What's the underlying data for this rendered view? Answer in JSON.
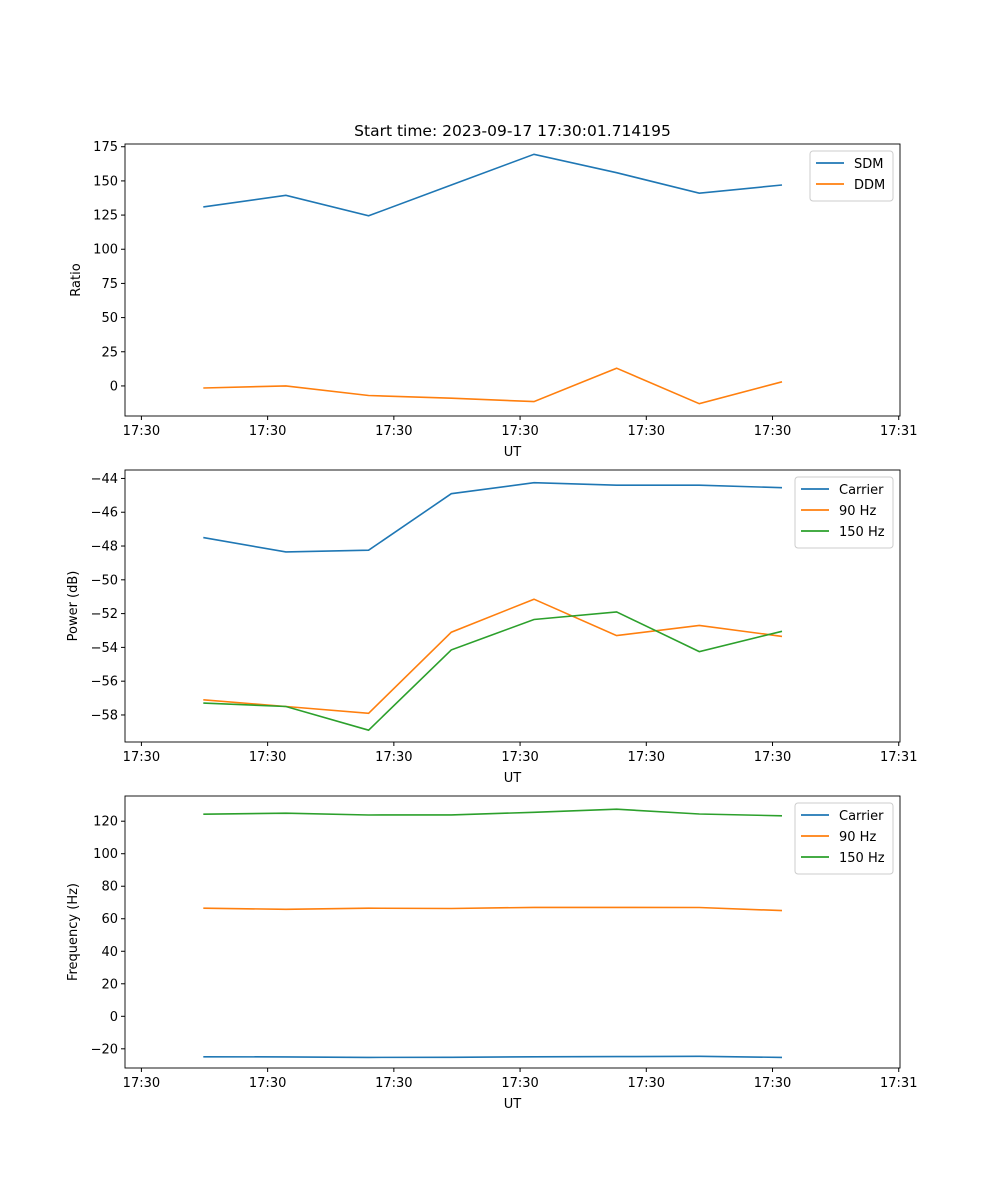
{
  "chart_data": [
    {
      "type": "line",
      "title": "Start time: 2023-09-17 17:30:01.714195",
      "xlabel": "UT",
      "ylabel": "Ratio",
      "x_seconds_after_1730": [
        4.9,
        11.45,
        18.0,
        24.55,
        31.1,
        37.65,
        44.2,
        50.75
      ],
      "xlim": [
        -1.3,
        60.1
      ],
      "xticks": [
        0,
        10,
        20,
        30,
        40,
        50,
        60
      ],
      "xtick_labels": [
        "17:30",
        "17:30",
        "17:30",
        "17:30",
        "17:30",
        "17:30",
        "17:31"
      ],
      "ylim": [
        -22,
        177
      ],
      "yticks": [
        0,
        25,
        50,
        75,
        100,
        125,
        150,
        175
      ],
      "legend": "top-right",
      "series": [
        {
          "name": "SDM",
          "color": "#1f77b4",
          "values": [
            131,
            139.5,
            124.5,
            147,
            169.5,
            156,
            141,
            147
          ]
        },
        {
          "name": "DDM",
          "color": "#ff7f0e",
          "values": [
            -1.5,
            0,
            -7,
            -9,
            -11.5,
            13,
            -13,
            3
          ]
        }
      ]
    },
    {
      "type": "line",
      "xlabel": "UT",
      "ylabel": "Power (dB)",
      "x_seconds_after_1730": [
        4.9,
        11.45,
        18.0,
        24.55,
        31.1,
        37.65,
        44.2,
        50.75
      ],
      "xlim": [
        -1.3,
        60.1
      ],
      "xticks": [
        0,
        10,
        20,
        30,
        40,
        50,
        60
      ],
      "xtick_labels": [
        "17:30",
        "17:30",
        "17:30",
        "17:30",
        "17:30",
        "17:30",
        "17:31"
      ],
      "ylim": [
        -59.6,
        -43.5
      ],
      "yticks": [
        -58,
        -56,
        -54,
        -52,
        -50,
        -48,
        -46,
        -44
      ],
      "ytick_labels": [
        "−58",
        "−56",
        "−54",
        "−52",
        "−50",
        "−48",
        "−46",
        "−44"
      ],
      "legend": "top-right",
      "series": [
        {
          "name": "Carrier",
          "color": "#1f77b4",
          "values": [
            -47.5,
            -48.35,
            -48.25,
            -44.9,
            -44.25,
            -44.4,
            -44.4,
            -44.55
          ]
        },
        {
          "name": "90 Hz",
          "color": "#ff7f0e",
          "values": [
            -57.1,
            -57.5,
            -57.9,
            -53.1,
            -51.15,
            -53.3,
            -52.7,
            -53.35
          ]
        },
        {
          "name": "150 Hz",
          "color": "#2ca02c",
          "values": [
            -57.3,
            -57.5,
            -58.9,
            -54.15,
            -52.35,
            -51.9,
            -54.25,
            -53.05
          ]
        }
      ]
    },
    {
      "type": "line",
      "xlabel": "UT",
      "ylabel": "Frequency (Hz)",
      "x_seconds_after_1730": [
        4.9,
        11.45,
        18.0,
        24.55,
        31.1,
        37.65,
        44.2,
        50.75
      ],
      "xlim": [
        -1.3,
        60.1
      ],
      "xticks": [
        0,
        10,
        20,
        30,
        40,
        50,
        60
      ],
      "xtick_labels": [
        "17:30",
        "17:30",
        "17:30",
        "17:30",
        "17:30",
        "17:30",
        "17:31"
      ],
      "ylim": [
        -31.8,
        135.5
      ],
      "yticks": [
        -20,
        0,
        20,
        40,
        60,
        80,
        100,
        120
      ],
      "ytick_labels": [
        "−20",
        "0",
        "20",
        "40",
        "60",
        "80",
        "100",
        "120"
      ],
      "legend": "top-right",
      "series": [
        {
          "name": "Carrier",
          "color": "#1f77b4",
          "values": [
            -24.9,
            -25.0,
            -25.3,
            -25.2,
            -24.9,
            -24.8,
            -24.6,
            -25.3
          ]
        },
        {
          "name": "90 Hz",
          "color": "#ff7f0e",
          "values": [
            66.5,
            65.8,
            66.5,
            66.3,
            67.0,
            67.0,
            66.9,
            65.0
          ]
        },
        {
          "name": "150 Hz",
          "color": "#2ca02c",
          "values": [
            124.3,
            124.9,
            123.8,
            123.9,
            125.5,
            127.4,
            124.4,
            123.3
          ]
        }
      ]
    }
  ]
}
